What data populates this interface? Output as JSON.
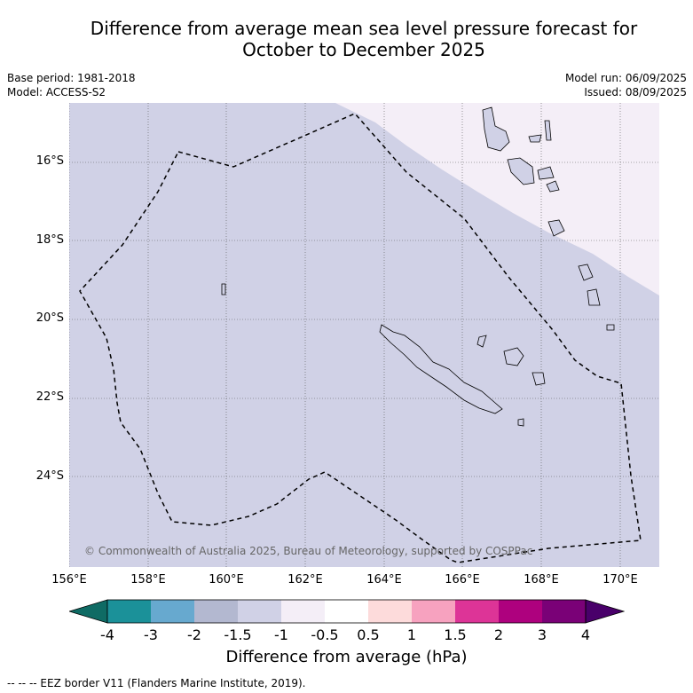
{
  "title_line1": "Difference from average mean sea level pressure forecast for",
  "title_line2": "October to December 2025",
  "meta": {
    "base_period": "Base period: 1981-2018",
    "model": "Model: ACCESS-S2",
    "model_run": "Model run: 06/09/2025",
    "issued": "Issued: 08/09/2025"
  },
  "map": {
    "lat_labels": [
      "16°S",
      "18°S",
      "20°S",
      "22°S",
      "24°S"
    ],
    "lon_labels": [
      "156°E",
      "158°E",
      "160°E",
      "162°E",
      "164°E",
      "166°E",
      "168°E",
      "170°E"
    ],
    "copyright": "© Commonwealth of Australia 2025, Bureau of Meteorology, supported by COSPPac",
    "field_colors": {
      "minus_1_5_to_minus_1": "#d0d1e6",
      "minus_1_to_minus_0_5": "#f4eef7"
    }
  },
  "colorbar": {
    "ticks": [
      "-4",
      "-3",
      "-2",
      "-1.5",
      "-1",
      "-0.5",
      "0.5",
      "1",
      "1.5",
      "2",
      "3",
      "4"
    ],
    "colors": [
      "#0f6b64",
      "#1b9199",
      "#67a9cf",
      "#b3b8d0",
      "#d0d1e6",
      "#f4eef7",
      "#ffffff",
      "#fddbdb",
      "#f7a2bf",
      "#dd3497",
      "#ae017e",
      "#7a0177",
      "#49006a"
    ],
    "label": "Difference from average (hPa)"
  },
  "footnote": "-- -- -- EEZ border V11 (Flanders Marine Institute, 2019)."
}
